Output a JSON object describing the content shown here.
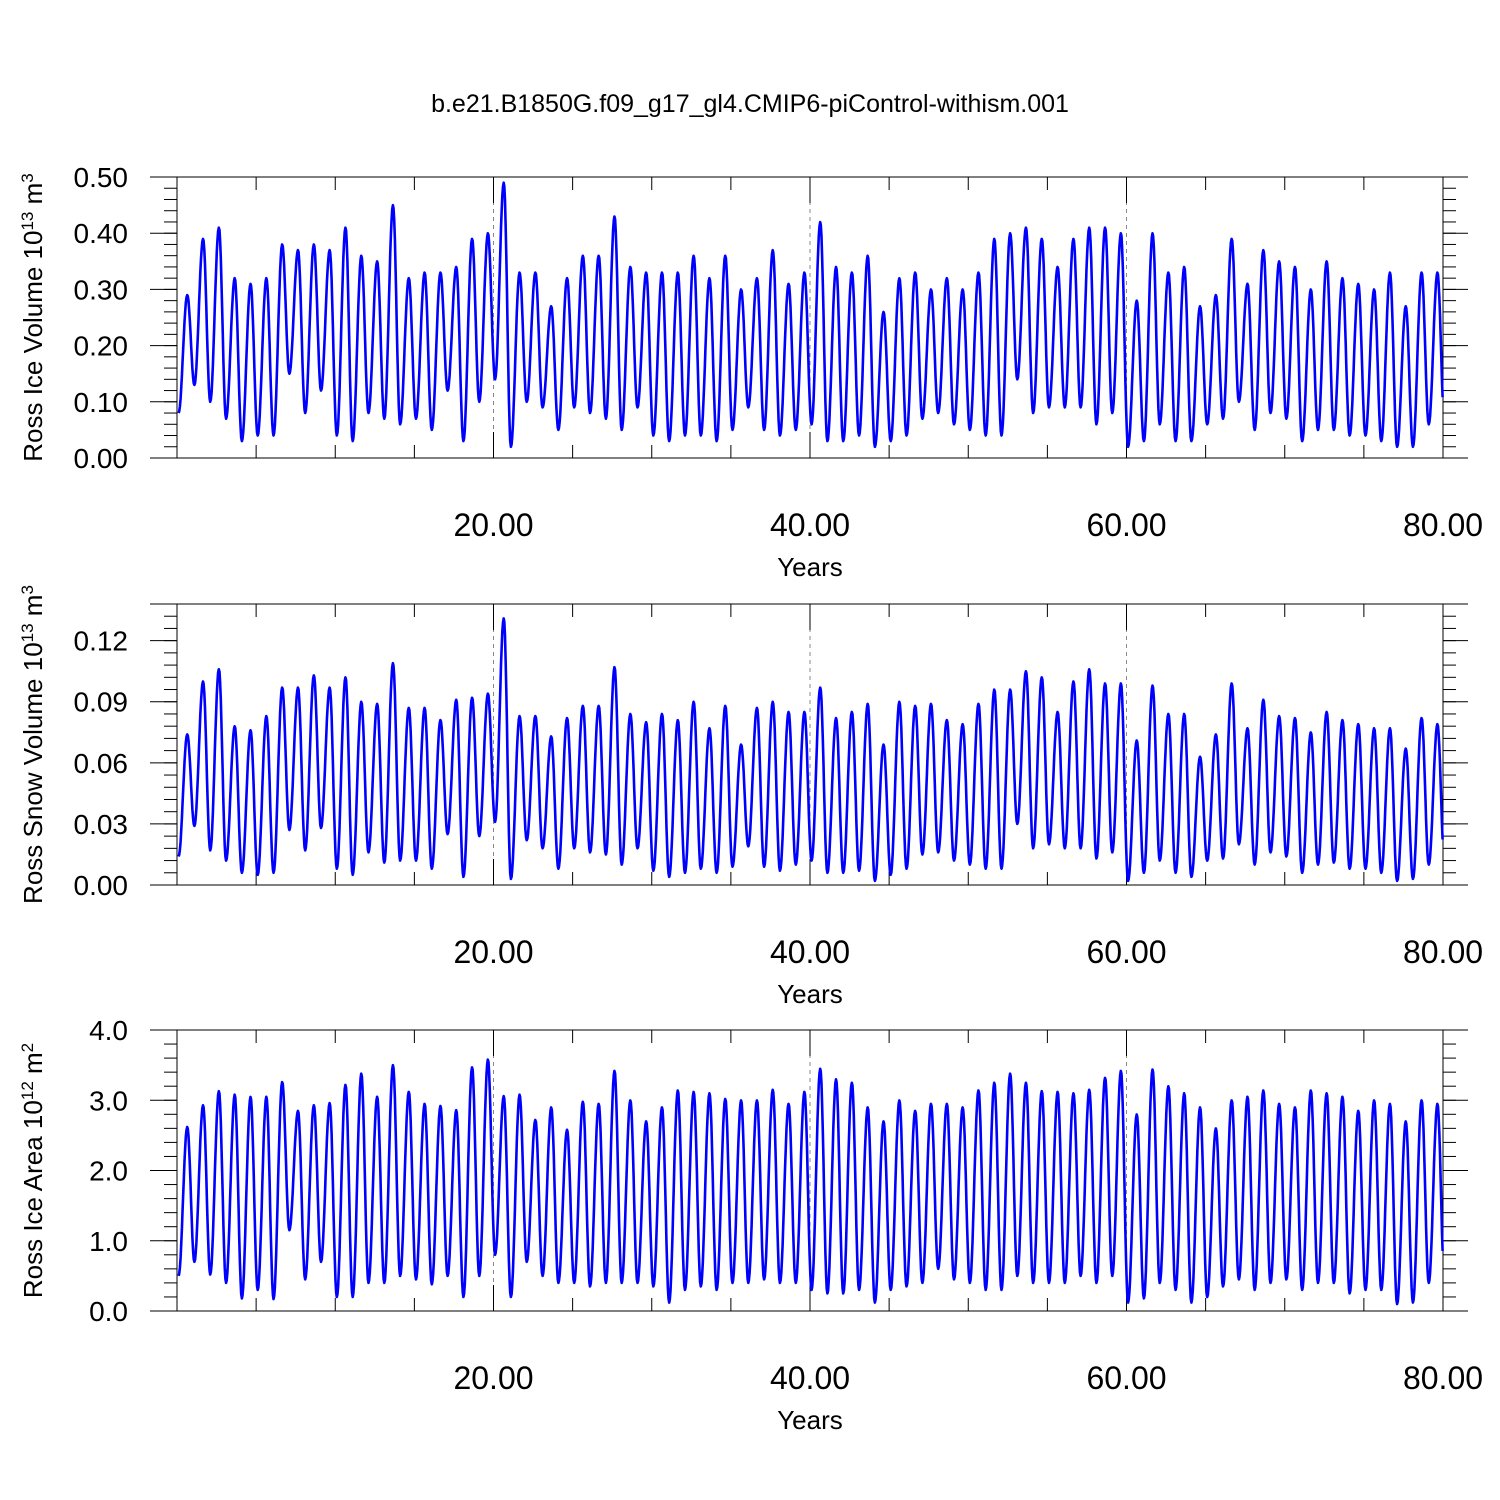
{
  "figure": {
    "title": "b.e21.B1850G.f09_g17_gl4.CMIP6-piControl-withism.001",
    "line_color": "#0000ff",
    "grid_color": "#888888"
  },
  "chart_data": [
    {
      "type": "line",
      "title": "",
      "xlabel": "Years",
      "ylabel": {
        "text": "Ross Ice Volume 10",
        "exponent": "13",
        "unit": " m",
        "unit_exponent": "3"
      },
      "xlim": [
        0,
        80
      ],
      "ylim": [
        0,
        0.5
      ],
      "x_ticks": [
        20,
        40,
        60,
        80
      ],
      "x_tick_labels": [
        "20.00",
        "40.00",
        "60.00",
        "80.00"
      ],
      "y_ticks": [
        0,
        0.1,
        0.2,
        0.3,
        0.4,
        0.5
      ],
      "y_tick_labels": [
        "0.00",
        "0.10",
        "0.20",
        "0.30",
        "0.40",
        "0.50"
      ],
      "grid": "dashed vertical at major x ticks",
      "series": [
        {
          "color": "#0000ff",
          "annual_maxima": [
            0.29,
            0.39,
            0.41,
            0.32,
            0.31,
            0.32,
            0.38,
            0.37,
            0.38,
            0.37,
            0.41,
            0.36,
            0.35,
            0.45,
            0.32,
            0.33,
            0.33,
            0.34,
            0.39,
            0.4,
            0.49,
            0.33,
            0.33,
            0.27,
            0.32,
            0.36,
            0.36,
            0.43,
            0.34,
            0.33,
            0.33,
            0.33,
            0.36,
            0.32,
            0.36,
            0.3,
            0.32,
            0.37,
            0.31,
            0.33,
            0.42,
            0.34,
            0.33,
            0.36,
            0.26,
            0.32,
            0.33,
            0.3,
            0.32,
            0.3,
            0.33,
            0.39,
            0.4,
            0.41,
            0.39,
            0.34,
            0.39,
            0.41,
            0.41,
            0.4,
            0.28,
            0.4,
            0.33,
            0.34,
            0.27,
            0.29,
            0.39,
            0.31,
            0.37,
            0.35,
            0.34,
            0.3,
            0.35,
            0.32,
            0.31,
            0.3,
            0.33,
            0.27,
            0.33,
            0.33
          ],
          "annual_minima": [
            0.08,
            0.13,
            0.1,
            0.07,
            0.03,
            0.04,
            0.04,
            0.15,
            0.08,
            0.12,
            0.04,
            0.03,
            0.08,
            0.07,
            0.06,
            0.07,
            0.05,
            0.12,
            0.03,
            0.1,
            0.14,
            0.02,
            0.1,
            0.09,
            0.05,
            0.09,
            0.08,
            0.07,
            0.05,
            0.09,
            0.04,
            0.03,
            0.04,
            0.04,
            0.03,
            0.05,
            0.09,
            0.05,
            0.04,
            0.05,
            0.06,
            0.03,
            0.03,
            0.04,
            0.02,
            0.03,
            0.04,
            0.07,
            0.08,
            0.06,
            0.05,
            0.04,
            0.04,
            0.14,
            0.08,
            0.09,
            0.09,
            0.09,
            0.06,
            0.08,
            0.02,
            0.03,
            0.06,
            0.03,
            0.03,
            0.06,
            0.07,
            0.1,
            0.05,
            0.08,
            0.07,
            0.03,
            0.05,
            0.05,
            0.04,
            0.04,
            0.03,
            0.02,
            0.02,
            0.06
          ]
        }
      ]
    },
    {
      "type": "line",
      "title": "",
      "xlabel": "Years",
      "ylabel": {
        "text": "Ross Snow Volume 10",
        "exponent": "13",
        "unit": " m",
        "unit_exponent": "3"
      },
      "xlim": [
        0,
        80
      ],
      "ylim": [
        0,
        0.138
      ],
      "x_ticks": [
        20,
        40,
        60,
        80
      ],
      "x_tick_labels": [
        "20.00",
        "40.00",
        "60.00",
        "80.00"
      ],
      "y_ticks": [
        0,
        0.03,
        0.06,
        0.09,
        0.12
      ],
      "y_tick_labels": [
        "0.00",
        "0.03",
        "0.06",
        "0.09",
        "0.12"
      ],
      "grid": "dashed vertical at major x ticks",
      "series": [
        {
          "color": "#0000ff",
          "annual_maxima": [
            0.074,
            0.1,
            0.106,
            0.078,
            0.076,
            0.083,
            0.097,
            0.097,
            0.103,
            0.097,
            0.102,
            0.09,
            0.089,
            0.109,
            0.087,
            0.087,
            0.081,
            0.091,
            0.092,
            0.094,
            0.131,
            0.083,
            0.083,
            0.073,
            0.082,
            0.088,
            0.088,
            0.107,
            0.084,
            0.08,
            0.084,
            0.081,
            0.09,
            0.077,
            0.088,
            0.069,
            0.087,
            0.09,
            0.085,
            0.085,
            0.097,
            0.082,
            0.085,
            0.089,
            0.069,
            0.09,
            0.088,
            0.089,
            0.081,
            0.079,
            0.089,
            0.096,
            0.096,
            0.105,
            0.102,
            0.085,
            0.1,
            0.106,
            0.099,
            0.099,
            0.071,
            0.098,
            0.084,
            0.084,
            0.063,
            0.074,
            0.099,
            0.077,
            0.091,
            0.083,
            0.082,
            0.075,
            0.085,
            0.081,
            0.079,
            0.077,
            0.077,
            0.067,
            0.082,
            0.079
          ],
          "annual_minima": [
            0.014,
            0.029,
            0.017,
            0.012,
            0.006,
            0.005,
            0.006,
            0.027,
            0.017,
            0.028,
            0.008,
            0.005,
            0.016,
            0.011,
            0.012,
            0.012,
            0.008,
            0.025,
            0.004,
            0.024,
            0.031,
            0.003,
            0.022,
            0.018,
            0.008,
            0.018,
            0.016,
            0.015,
            0.01,
            0.018,
            0.007,
            0.004,
            0.006,
            0.008,
            0.006,
            0.009,
            0.019,
            0.009,
            0.007,
            0.01,
            0.012,
            0.006,
            0.006,
            0.007,
            0.002,
            0.005,
            0.008,
            0.015,
            0.016,
            0.012,
            0.01,
            0.008,
            0.008,
            0.03,
            0.018,
            0.02,
            0.018,
            0.018,
            0.013,
            0.016,
            0.002,
            0.006,
            0.012,
            0.006,
            0.004,
            0.012,
            0.013,
            0.02,
            0.01,
            0.016,
            0.014,
            0.006,
            0.01,
            0.011,
            0.008,
            0.008,
            0.006,
            0.002,
            0.003,
            0.01
          ]
        }
      ]
    },
    {
      "type": "line",
      "title": "",
      "xlabel": "Years",
      "ylabel": {
        "text": "Ross Ice Area 10",
        "exponent": "12",
        "unit": " m",
        "unit_exponent": "2"
      },
      "xlim": [
        0,
        80
      ],
      "ylim": [
        0,
        4.0
      ],
      "x_ticks": [
        20,
        40,
        60,
        80
      ],
      "x_tick_labels": [
        "20.00",
        "40.00",
        "60.00",
        "80.00"
      ],
      "y_ticks": [
        0,
        1,
        2,
        3,
        4
      ],
      "y_tick_labels": [
        "0.0",
        "1.0",
        "2.0",
        "3.0",
        "4.0"
      ],
      "grid": "dashed vertical at major x ticks",
      "series": [
        {
          "color": "#0000ff",
          "annual_maxima": [
            2.62,
            2.93,
            3.13,
            3.08,
            3.05,
            3.05,
            3.26,
            2.85,
            2.93,
            2.96,
            3.22,
            3.38,
            3.05,
            3.5,
            3.12,
            2.95,
            2.92,
            2.86,
            3.47,
            3.58,
            3.06,
            3.08,
            2.72,
            2.9,
            2.58,
            2.98,
            2.95,
            3.42,
            3.0,
            2.7,
            2.9,
            3.14,
            3.12,
            3.1,
            3.02,
            3.0,
            3.0,
            3.15,
            2.95,
            3.12,
            3.45,
            3.3,
            3.25,
            2.9,
            2.7,
            3.0,
            2.85,
            2.95,
            2.95,
            2.9,
            3.14,
            3.25,
            3.38,
            3.25,
            3.13,
            3.12,
            3.1,
            3.15,
            3.32,
            3.42,
            2.8,
            3.44,
            3.2,
            3.1,
            2.9,
            2.6,
            3.0,
            3.05,
            3.14,
            2.95,
            2.9,
            3.14,
            3.1,
            3.05,
            2.85,
            3.0,
            2.95,
            2.7,
            3.0,
            2.95
          ],
          "annual_minima": [
            0.5,
            0.7,
            0.52,
            0.4,
            0.18,
            0.3,
            0.17,
            1.15,
            0.45,
            0.7,
            0.2,
            0.2,
            0.4,
            0.4,
            0.5,
            0.45,
            0.38,
            0.5,
            0.2,
            0.5,
            0.8,
            0.2,
            0.7,
            0.5,
            0.4,
            0.4,
            0.35,
            0.4,
            0.4,
            0.4,
            0.35,
            0.12,
            0.3,
            0.35,
            0.3,
            0.4,
            0.4,
            0.45,
            0.4,
            0.4,
            0.3,
            0.25,
            0.25,
            0.3,
            0.12,
            0.3,
            0.35,
            0.4,
            0.6,
            0.45,
            0.4,
            0.3,
            0.3,
            0.5,
            0.4,
            0.4,
            0.4,
            0.5,
            0.4,
            0.5,
            0.12,
            0.18,
            0.4,
            0.3,
            0.12,
            0.2,
            0.35,
            0.45,
            0.3,
            0.4,
            0.45,
            0.3,
            0.4,
            0.4,
            0.25,
            0.3,
            0.3,
            0.1,
            0.12,
            0.4
          ]
        }
      ]
    }
  ]
}
